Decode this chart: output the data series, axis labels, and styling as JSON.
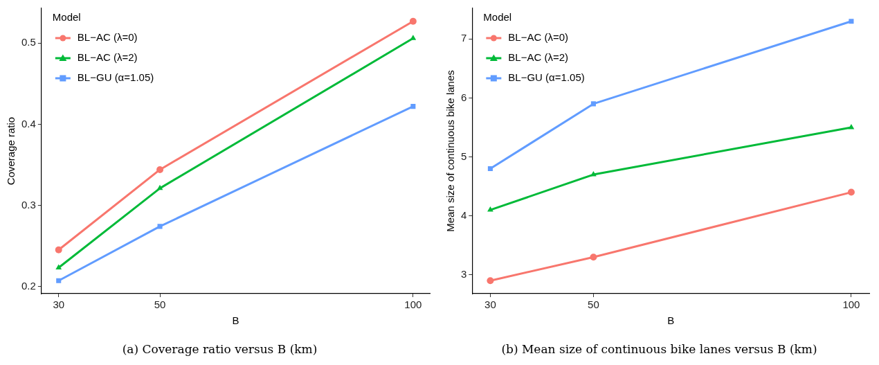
{
  "chart_data": [
    {
      "type": "line",
      "xlabel": "B",
      "ylabel": "Coverage ratio",
      "legend_title": "Model",
      "legend": "top left",
      "grid": false,
      "x": [
        30,
        50,
        100
      ],
      "xlim": [
        26.6,
        103.3
      ],
      "xticks": [
        30,
        50,
        100
      ],
      "ylim": [
        0.191,
        0.543
      ],
      "yticks": [
        0.2,
        0.3,
        0.4,
        0.5
      ],
      "series": [
        {
          "name": "BL−AC (λ=0)",
          "color": "#f8766d",
          "marker": "circle",
          "values": [
            0.245,
            0.344,
            0.527
          ]
        },
        {
          "name": "BL−AC (λ=2)",
          "color": "#00ba38",
          "marker": "triangle",
          "values": [
            0.223,
            0.321,
            0.506
          ]
        },
        {
          "name": "BL−GU (α=1.05)",
          "color": "#619cff",
          "marker": "square",
          "values": [
            0.207,
            0.274,
            0.422
          ]
        }
      ],
      "annotations": [
        "(a) Coverage ratio versus B (km)"
      ]
    },
    {
      "type": "line",
      "xlabel": "B",
      "ylabel": "Mean size of continuous bike lanes",
      "legend_title": "Model",
      "legend": "top left",
      "grid": false,
      "x": [
        30,
        50,
        100
      ],
      "xlim": [
        26.5,
        103.5
      ],
      "xticks": [
        30,
        50,
        100
      ],
      "ylim": [
        2.68,
        7.52
      ],
      "yticks": [
        3,
        4,
        5,
        6,
        7
      ],
      "series": [
        {
          "name": "BL−AC (λ=0)",
          "color": "#f8766d",
          "marker": "circle",
          "values": [
            2.9,
            3.3,
            4.4
          ]
        },
        {
          "name": "BL−AC (λ=2)",
          "color": "#00ba38",
          "marker": "triangle",
          "values": [
            4.1,
            4.7,
            5.5
          ]
        },
        {
          "name": "BL−GU (α=1.05)",
          "color": "#619cff",
          "marker": "square",
          "values": [
            4.8,
            5.9,
            7.3
          ]
        }
      ],
      "annotations": [
        "(b) Mean size of continuous bike lanes versus B (km)"
      ]
    }
  ]
}
